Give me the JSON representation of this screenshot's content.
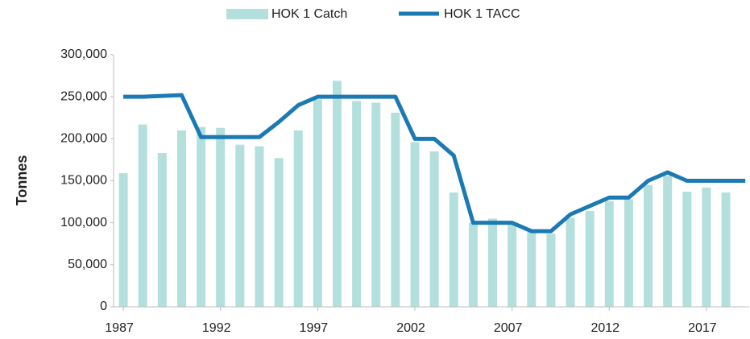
{
  "chart_data": {
    "type": "bar+line",
    "y_label": "Tonnes",
    "x": [
      1987,
      1988,
      1989,
      1990,
      1991,
      1992,
      1993,
      1994,
      1995,
      1996,
      1997,
      1998,
      1999,
      2000,
      2001,
      2002,
      2003,
      2004,
      2005,
      2006,
      2007,
      2008,
      2009,
      2010,
      2011,
      2012,
      2013,
      2014,
      2015,
      2016,
      2017,
      2018,
      2019
    ],
    "series": [
      {
        "name": "HOK 1 Catch",
        "type": "bar",
        "color": "#b3e0dc",
        "values": [
          159000,
          217000,
          183000,
          210000,
          214000,
          213000,
          193000,
          191000,
          177000,
          210000,
          247000,
          269000,
          245000,
          243000,
          231000,
          196000,
          185000,
          136000,
          100000,
          105000,
          99000,
          89000,
          87000,
          106000,
          114000,
          126000,
          128000,
          145000,
          156000,
          137000,
          142000,
          136000,
          null
        ]
      },
      {
        "name": "HOK 1 TACC",
        "type": "line",
        "color": "#1b7ab3",
        "values": [
          250000,
          250000,
          251000,
          252000,
          202000,
          202000,
          202000,
          202000,
          220000,
          240000,
          250000,
          250000,
          250000,
          250000,
          250000,
          200000,
          200000,
          180000,
          100000,
          100000,
          100000,
          90000,
          90000,
          110000,
          120000,
          130000,
          130000,
          150000,
          160000,
          150000,
          150000,
          150000,
          150000
        ]
      }
    ],
    "xlim": [
      1986.5,
      2019.2
    ],
    "xticks": [
      1987,
      1992,
      1997,
      2002,
      2007,
      2012,
      2017
    ],
    "ylim": [
      0,
      300000
    ],
    "yticks": [
      0,
      {
        "value": 50000,
        "label": "50,000"
      },
      {
        "value": 100000,
        "label": "100,000"
      },
      {
        "value": 150000,
        "label": "150,000"
      },
      {
        "value": 200000,
        "label": "200,000"
      },
      {
        "value": 250000,
        "label": "250,000"
      },
      {
        "value": 300000,
        "label": "300,000"
      }
    ],
    "grid": false,
    "legend": "top"
  }
}
